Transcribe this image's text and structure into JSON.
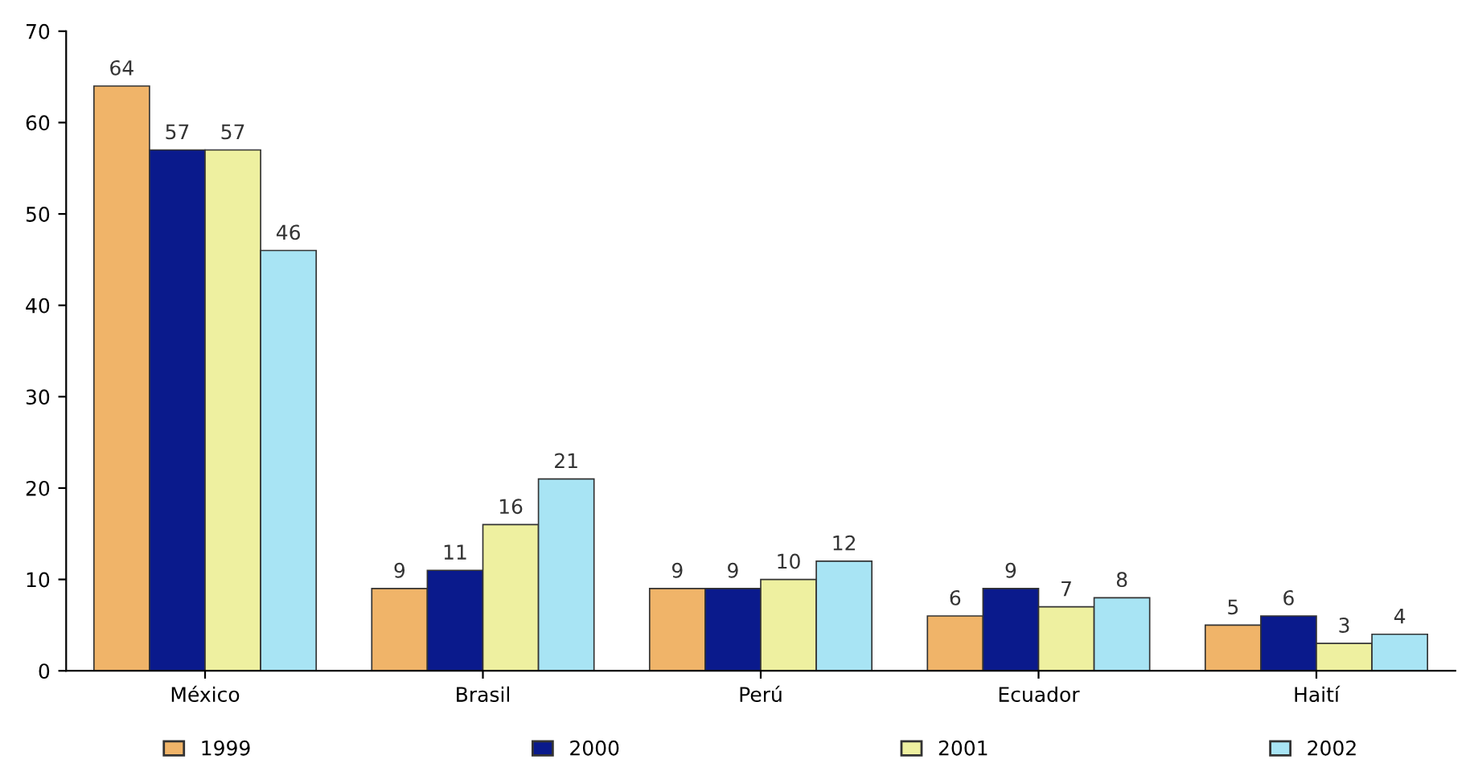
{
  "chart_data": {
    "type": "bar",
    "categories": [
      "México",
      "Brasil",
      "Perú",
      "Ecuador",
      "Haití"
    ],
    "series": [
      {
        "name": "1999",
        "color": "#f0b469",
        "values": [
          64,
          9,
          9,
          6,
          5
        ]
      },
      {
        "name": "2000",
        "color": "#0a1a8c",
        "values": [
          57,
          11,
          9,
          9,
          6
        ]
      },
      {
        "name": "2001",
        "color": "#eef0a0",
        "values": [
          57,
          16,
          10,
          7,
          3
        ]
      },
      {
        "name": "2002",
        "color": "#a8e4f4",
        "values": [
          46,
          21,
          12,
          8,
          4
        ]
      }
    ],
    "ylim": [
      0,
      70
    ],
    "yticks": [
      0,
      10,
      20,
      30,
      40,
      50,
      60,
      70
    ],
    "data_labels": true,
    "grid": false,
    "legend": "bottom"
  }
}
